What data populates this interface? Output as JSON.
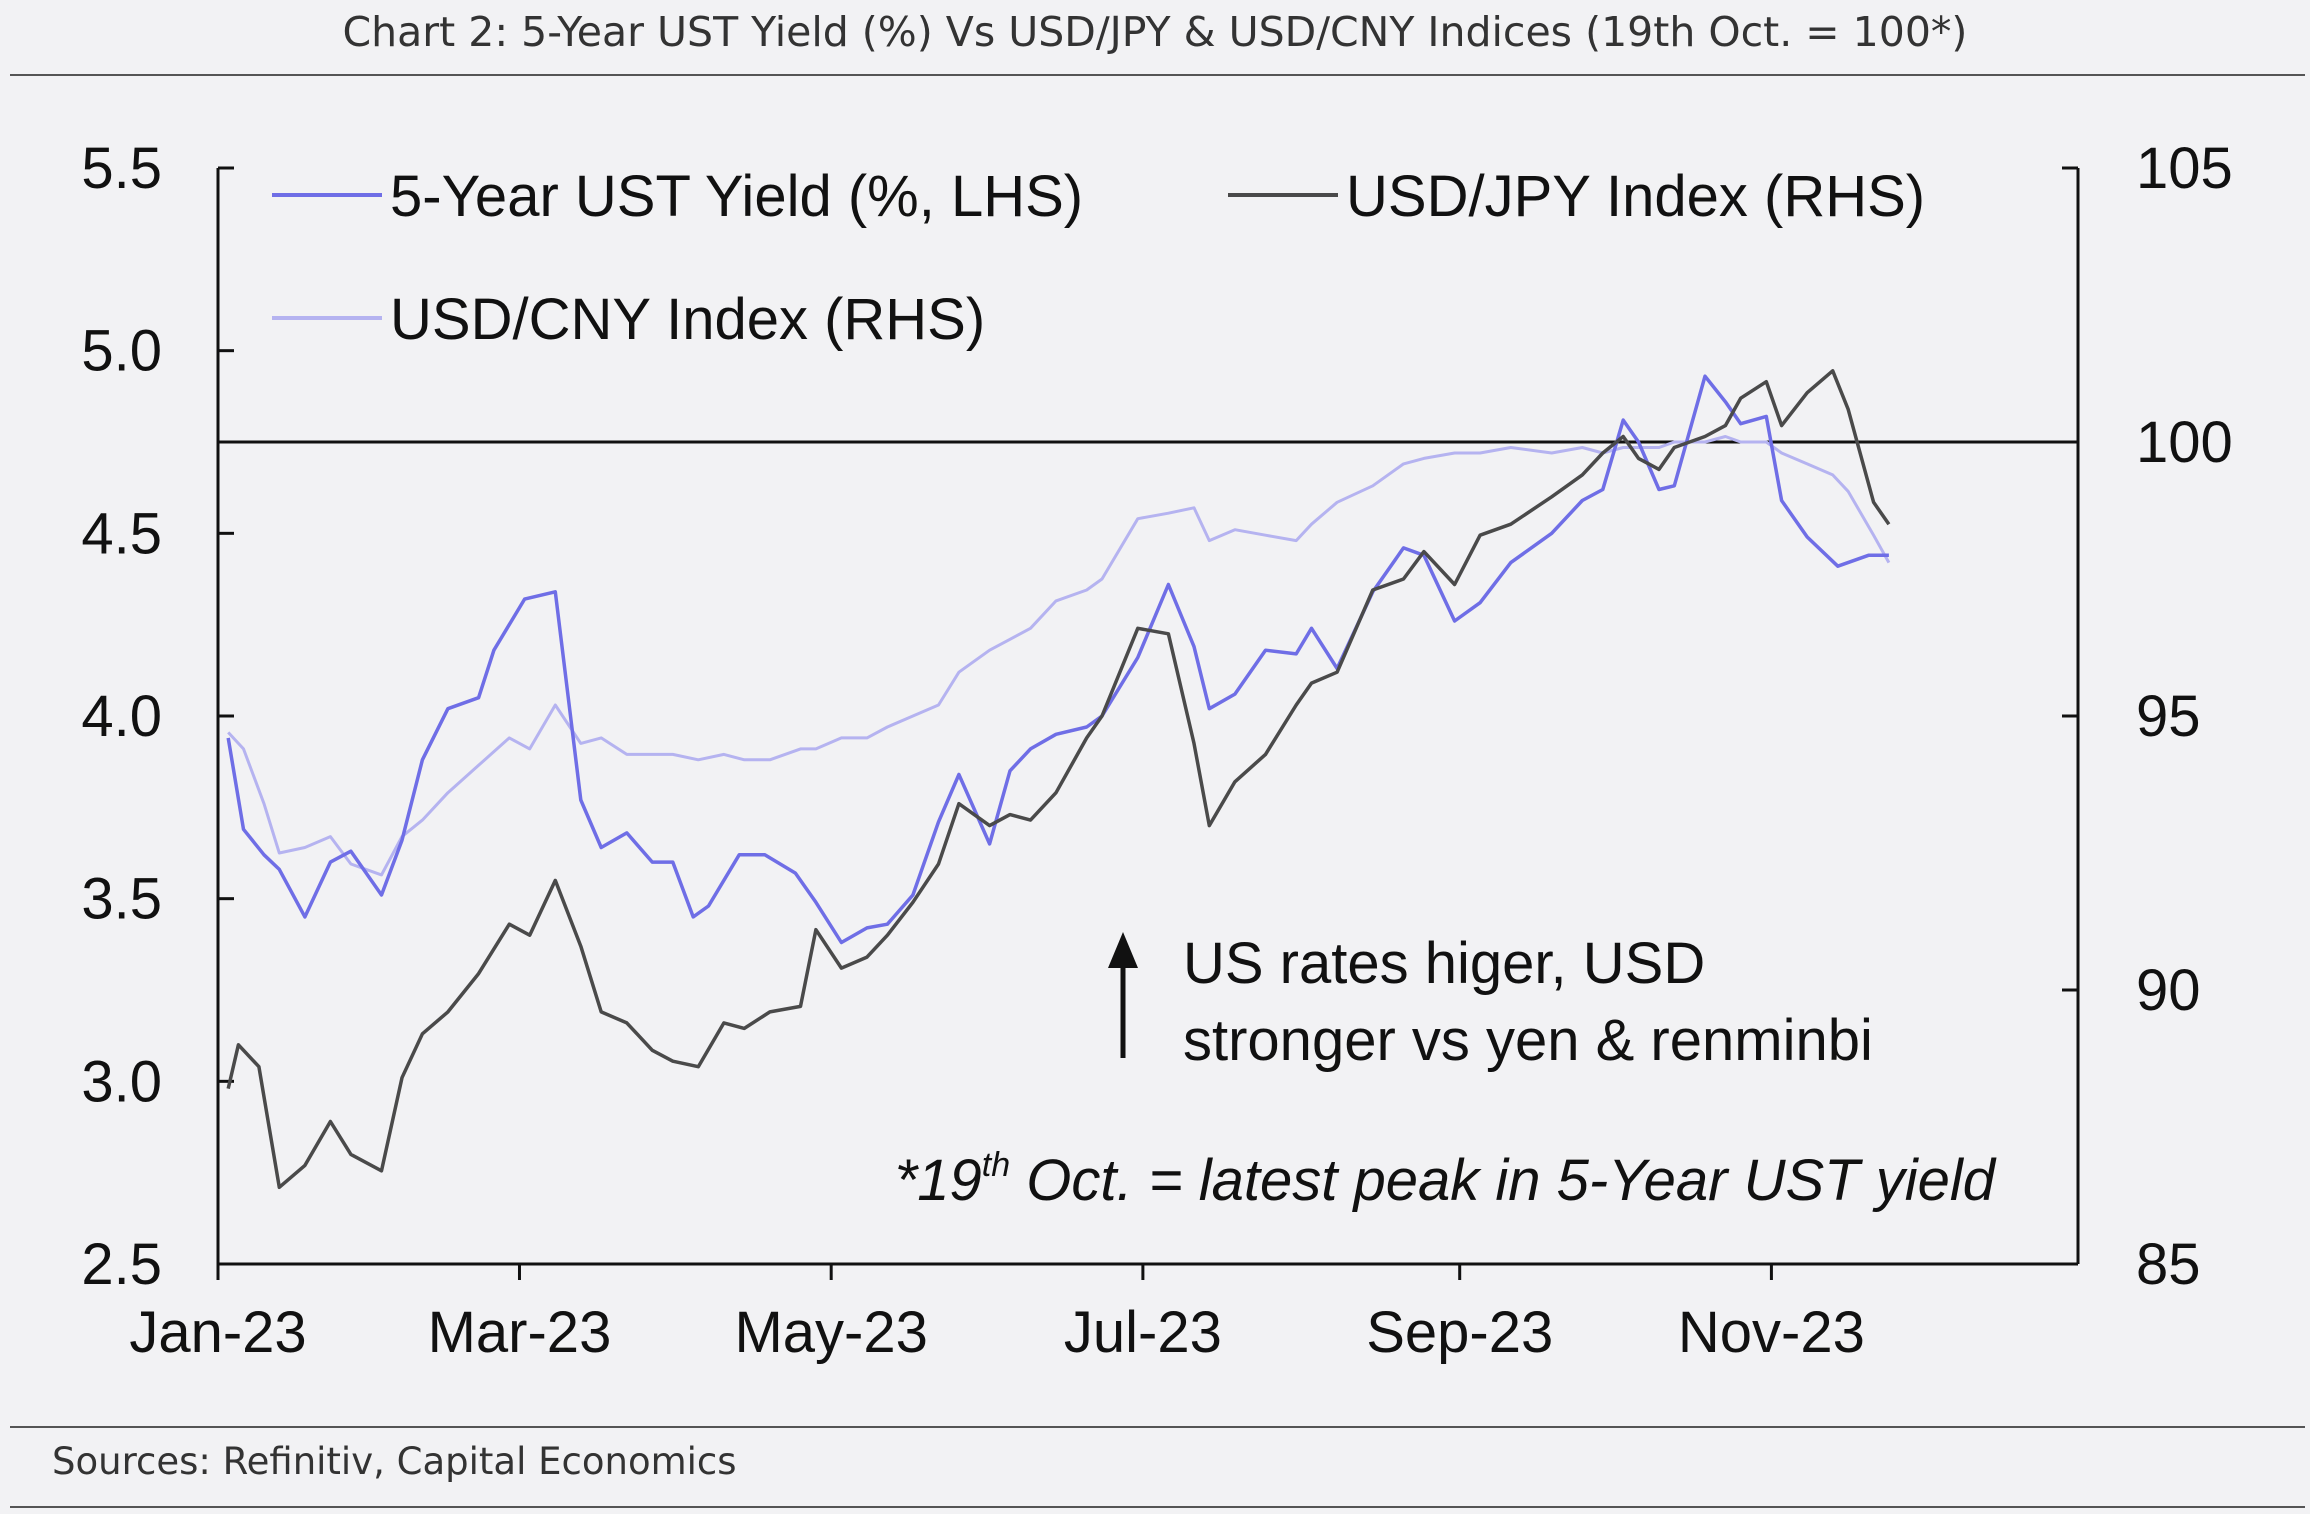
{
  "figure_title": "Chart 2: 5-Year UST Yield (%) Vs USD/JPY & USD/CNY Indices (19th Oct. = 100*)",
  "sources": "Sources: Refinitiv, Capital Economics",
  "colors": {
    "ust": "#6f6ee6",
    "jpy": "#4a4a4a",
    "cny": "#b5b3f0",
    "axis": "#111111",
    "reference": "#111111"
  },
  "chart_data": {
    "type": "line",
    "title": "",
    "xlabel": "",
    "ylabel_left": "",
    "ylabel_right": "",
    "x_tick_labels": [
      "Jan-23",
      "Mar-23",
      "May-23",
      "Jul-23",
      "Sep-23",
      "Nov-23"
    ],
    "x_tick_dates": [
      "2023-01-01",
      "2023-03-01",
      "2023-05-01",
      "2023-07-01",
      "2023-09-01",
      "2023-11-01"
    ],
    "xlim": [
      "2023-01-01",
      "2023-12-31"
    ],
    "ylim_left": [
      2.5,
      5.5
    ],
    "ylim_right": [
      85,
      105
    ],
    "left_ticks": [
      "2.5",
      "3.0",
      "3.5",
      "4.0",
      "4.5",
      "5.0",
      "5.5"
    ],
    "right_ticks": [
      "85",
      "90",
      "95",
      "100",
      "105"
    ],
    "reference_line": {
      "axis": "right",
      "value": 100
    },
    "legend": {
      "placement": "top-left",
      "items": [
        {
          "series": "ust",
          "label": "5-Year UST Yield (%, LHS)"
        },
        {
          "series": "jpy",
          "label": "USD/JPY Index (RHS)"
        },
        {
          "series": "cny",
          "label": "USD/CNY Index (RHS)"
        }
      ]
    },
    "annotations": {
      "main_line1": "US rates higer, USD",
      "main_line2": "stronger vs yen & renminbi",
      "footnote_star": "*19",
      "footnote_sup": "th",
      "footnote_rest": " Oct. = latest peak in 5-Year UST yield"
    },
    "series": [
      {
        "name": "5-Year UST Yield (%, LHS)",
        "key": "ust",
        "axis": "left",
        "points": [
          [
            "2023-01-03",
            3.94
          ],
          [
            "2023-01-06",
            3.69
          ],
          [
            "2023-01-10",
            3.62
          ],
          [
            "2023-01-13",
            3.58
          ],
          [
            "2023-01-18",
            3.45
          ],
          [
            "2023-01-23",
            3.6
          ],
          [
            "2023-01-27",
            3.63
          ],
          [
            "2023-02-02",
            3.51
          ],
          [
            "2023-02-06",
            3.66
          ],
          [
            "2023-02-10",
            3.88
          ],
          [
            "2023-02-15",
            4.02
          ],
          [
            "2023-02-21",
            4.05
          ],
          [
            "2023-02-24",
            4.18
          ],
          [
            "2023-03-02",
            4.32
          ],
          [
            "2023-03-08",
            4.34
          ],
          [
            "2023-03-13",
            3.77
          ],
          [
            "2023-03-17",
            3.64
          ],
          [
            "2023-03-22",
            3.68
          ],
          [
            "2023-03-27",
            3.6
          ],
          [
            "2023-03-31",
            3.6
          ],
          [
            "2023-04-04",
            3.45
          ],
          [
            "2023-04-07",
            3.48
          ],
          [
            "2023-04-13",
            3.62
          ],
          [
            "2023-04-18",
            3.62
          ],
          [
            "2023-04-24",
            3.57
          ],
          [
            "2023-04-28",
            3.49
          ],
          [
            "2023-05-03",
            3.38
          ],
          [
            "2023-05-08",
            3.42
          ],
          [
            "2023-05-12",
            3.43
          ],
          [
            "2023-05-17",
            3.51
          ],
          [
            "2023-05-22",
            3.71
          ],
          [
            "2023-05-26",
            3.84
          ],
          [
            "2023-06-01",
            3.65
          ],
          [
            "2023-06-05",
            3.85
          ],
          [
            "2023-06-09",
            3.91
          ],
          [
            "2023-06-14",
            3.95
          ],
          [
            "2023-06-20",
            3.97
          ],
          [
            "2023-06-23",
            4.0
          ],
          [
            "2023-06-30",
            4.16
          ],
          [
            "2023-07-06",
            4.36
          ],
          [
            "2023-07-11",
            4.19
          ],
          [
            "2023-07-14",
            4.02
          ],
          [
            "2023-07-19",
            4.06
          ],
          [
            "2023-07-25",
            4.18
          ],
          [
            "2023-07-31",
            4.17
          ],
          [
            "2023-08-03",
            4.24
          ],
          [
            "2023-08-08",
            4.13
          ],
          [
            "2023-08-15",
            4.34
          ],
          [
            "2023-08-21",
            4.46
          ],
          [
            "2023-08-25",
            4.44
          ],
          [
            "2023-08-31",
            4.26
          ],
          [
            "2023-09-05",
            4.31
          ],
          [
            "2023-09-11",
            4.42
          ],
          [
            "2023-09-19",
            4.5
          ],
          [
            "2023-09-25",
            4.59
          ],
          [
            "2023-09-29",
            4.62
          ],
          [
            "2023-10-03",
            4.81
          ],
          [
            "2023-10-06",
            4.75
          ],
          [
            "2023-10-10",
            4.62
          ],
          [
            "2023-10-13",
            4.63
          ],
          [
            "2023-10-19",
            4.93
          ],
          [
            "2023-10-23",
            4.86
          ],
          [
            "2023-10-26",
            4.8
          ],
          [
            "2023-10-31",
            4.82
          ],
          [
            "2023-11-03",
            4.59
          ],
          [
            "2023-11-08",
            4.49
          ],
          [
            "2023-11-14",
            4.41
          ],
          [
            "2023-11-20",
            4.44
          ],
          [
            "2023-11-24",
            4.44
          ]
        ]
      },
      {
        "name": "USD/JPY Index (RHS)",
        "key": "jpy",
        "axis": "right",
        "points": [
          [
            "2023-01-03",
            88.2
          ],
          [
            "2023-01-05",
            89.0
          ],
          [
            "2023-01-09",
            88.6
          ],
          [
            "2023-01-13",
            86.4
          ],
          [
            "2023-01-18",
            86.8
          ],
          [
            "2023-01-23",
            87.6
          ],
          [
            "2023-01-27",
            87.0
          ],
          [
            "2023-02-02",
            86.7
          ],
          [
            "2023-02-06",
            88.4
          ],
          [
            "2023-02-10",
            89.2
          ],
          [
            "2023-02-15",
            89.6
          ],
          [
            "2023-02-21",
            90.3
          ],
          [
            "2023-02-27",
            91.2
          ],
          [
            "2023-03-03",
            91.0
          ],
          [
            "2023-03-08",
            92.0
          ],
          [
            "2023-03-13",
            90.8
          ],
          [
            "2023-03-17",
            89.6
          ],
          [
            "2023-03-22",
            89.4
          ],
          [
            "2023-03-27",
            88.9
          ],
          [
            "2023-03-31",
            88.7
          ],
          [
            "2023-04-05",
            88.6
          ],
          [
            "2023-04-10",
            89.4
          ],
          [
            "2023-04-14",
            89.3
          ],
          [
            "2023-04-19",
            89.6
          ],
          [
            "2023-04-25",
            89.7
          ],
          [
            "2023-04-28",
            91.1
          ],
          [
            "2023-05-03",
            90.4
          ],
          [
            "2023-05-08",
            90.6
          ],
          [
            "2023-05-12",
            91.0
          ],
          [
            "2023-05-17",
            91.6
          ],
          [
            "2023-05-22",
            92.3
          ],
          [
            "2023-05-26",
            93.4
          ],
          [
            "2023-06-01",
            93.0
          ],
          [
            "2023-06-05",
            93.2
          ],
          [
            "2023-06-09",
            93.1
          ],
          [
            "2023-06-14",
            93.6
          ],
          [
            "2023-06-20",
            94.6
          ],
          [
            "2023-06-23",
            95.0
          ],
          [
            "2023-06-30",
            96.6
          ],
          [
            "2023-07-06",
            96.5
          ],
          [
            "2023-07-11",
            94.5
          ],
          [
            "2023-07-14",
            93.0
          ],
          [
            "2023-07-19",
            93.8
          ],
          [
            "2023-07-25",
            94.3
          ],
          [
            "2023-07-31",
            95.2
          ],
          [
            "2023-08-03",
            95.6
          ],
          [
            "2023-08-08",
            95.8
          ],
          [
            "2023-08-15",
            97.3
          ],
          [
            "2023-08-21",
            97.5
          ],
          [
            "2023-08-25",
            98.0
          ],
          [
            "2023-08-31",
            97.4
          ],
          [
            "2023-09-05",
            98.3
          ],
          [
            "2023-09-11",
            98.5
          ],
          [
            "2023-09-19",
            99.0
          ],
          [
            "2023-09-25",
            99.4
          ],
          [
            "2023-09-29",
            99.8
          ],
          [
            "2023-10-03",
            100.1
          ],
          [
            "2023-10-06",
            99.7
          ],
          [
            "2023-10-10",
            99.5
          ],
          [
            "2023-10-13",
            99.9
          ],
          [
            "2023-10-19",
            100.1
          ],
          [
            "2023-10-23",
            100.3
          ],
          [
            "2023-10-26",
            100.8
          ],
          [
            "2023-10-31",
            101.1
          ],
          [
            "2023-11-03",
            100.3
          ],
          [
            "2023-11-08",
            100.9
          ],
          [
            "2023-11-13",
            101.3
          ],
          [
            "2023-11-16",
            100.6
          ],
          [
            "2023-11-21",
            98.9
          ],
          [
            "2023-11-24",
            98.5
          ]
        ]
      },
      {
        "name": "USD/CNY Index (RHS)",
        "key": "cny",
        "axis": "right",
        "points": [
          [
            "2023-01-03",
            94.7
          ],
          [
            "2023-01-06",
            94.4
          ],
          [
            "2023-01-10",
            93.4
          ],
          [
            "2023-01-13",
            92.5
          ],
          [
            "2023-01-18",
            92.6
          ],
          [
            "2023-01-23",
            92.8
          ],
          [
            "2023-01-27",
            92.3
          ],
          [
            "2023-02-02",
            92.1
          ],
          [
            "2023-02-06",
            92.8
          ],
          [
            "2023-02-10",
            93.1
          ],
          [
            "2023-02-15",
            93.6
          ],
          [
            "2023-02-21",
            94.1
          ],
          [
            "2023-02-27",
            94.6
          ],
          [
            "2023-03-03",
            94.4
          ],
          [
            "2023-03-08",
            95.2
          ],
          [
            "2023-03-13",
            94.5
          ],
          [
            "2023-03-17",
            94.6
          ],
          [
            "2023-03-22",
            94.3
          ],
          [
            "2023-03-27",
            94.3
          ],
          [
            "2023-03-31",
            94.3
          ],
          [
            "2023-04-05",
            94.2
          ],
          [
            "2023-04-10",
            94.3
          ],
          [
            "2023-04-14",
            94.2
          ],
          [
            "2023-04-19",
            94.2
          ],
          [
            "2023-04-25",
            94.4
          ],
          [
            "2023-04-28",
            94.4
          ],
          [
            "2023-05-03",
            94.6
          ],
          [
            "2023-05-08",
            94.6
          ],
          [
            "2023-05-12",
            94.8
          ],
          [
            "2023-05-17",
            95.0
          ],
          [
            "2023-05-22",
            95.2
          ],
          [
            "2023-05-26",
            95.8
          ],
          [
            "2023-06-01",
            96.2
          ],
          [
            "2023-06-05",
            96.4
          ],
          [
            "2023-06-09",
            96.6
          ],
          [
            "2023-06-14",
            97.1
          ],
          [
            "2023-06-20",
            97.3
          ],
          [
            "2023-06-23",
            97.5
          ],
          [
            "2023-06-30",
            98.6
          ],
          [
            "2023-07-06",
            98.7
          ],
          [
            "2023-07-11",
            98.8
          ],
          [
            "2023-07-14",
            98.2
          ],
          [
            "2023-07-19",
            98.4
          ],
          [
            "2023-07-25",
            98.3
          ],
          [
            "2023-07-31",
            98.2
          ],
          [
            "2023-08-03",
            98.5
          ],
          [
            "2023-08-08",
            98.9
          ],
          [
            "2023-08-15",
            99.2
          ],
          [
            "2023-08-21",
            99.6
          ],
          [
            "2023-08-25",
            99.7
          ],
          [
            "2023-08-31",
            99.8
          ],
          [
            "2023-09-05",
            99.8
          ],
          [
            "2023-09-11",
            99.9
          ],
          [
            "2023-09-19",
            99.8
          ],
          [
            "2023-09-25",
            99.9
          ],
          [
            "2023-09-29",
            99.8
          ],
          [
            "2023-10-03",
            99.9
          ],
          [
            "2023-10-06",
            99.9
          ],
          [
            "2023-10-10",
            99.9
          ],
          [
            "2023-10-13",
            100.0
          ],
          [
            "2023-10-19",
            100.0
          ],
          [
            "2023-10-23",
            100.1
          ],
          [
            "2023-10-26",
            100.0
          ],
          [
            "2023-10-31",
            100.0
          ],
          [
            "2023-11-03",
            99.8
          ],
          [
            "2023-11-08",
            99.6
          ],
          [
            "2023-11-13",
            99.4
          ],
          [
            "2023-11-16",
            99.1
          ],
          [
            "2023-11-21",
            98.3
          ],
          [
            "2023-11-24",
            97.8
          ]
        ]
      }
    ]
  }
}
